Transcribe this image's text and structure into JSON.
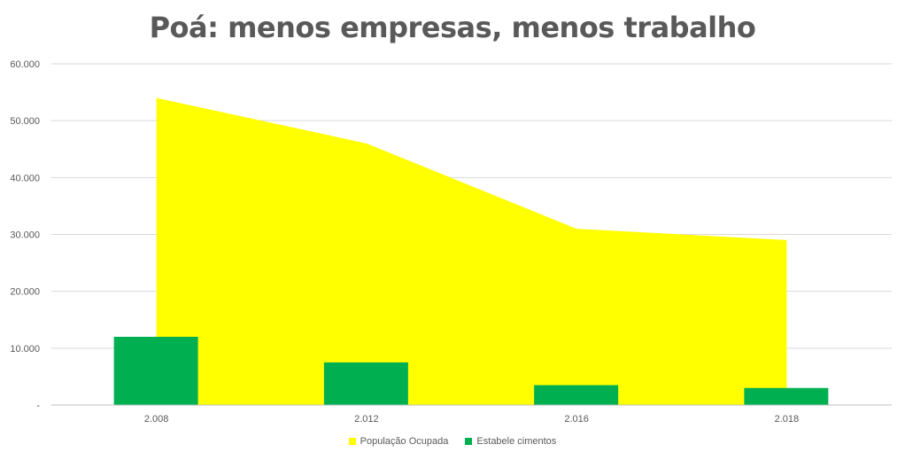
{
  "chart_data": {
    "type": "area+bar",
    "title": "Poá: menos empresas, menos trabalho",
    "categories": [
      "2.008",
      "2.012",
      "2.016",
      "2.018"
    ],
    "series": [
      {
        "name": "População Ocupada",
        "type": "area",
        "color": "#FFFF00",
        "values": [
          54000,
          46000,
          31000,
          29000
        ]
      },
      {
        "name": "Estabele cimentos",
        "type": "bar",
        "color": "#00B050",
        "values": [
          12000,
          7500,
          3500,
          3000
        ]
      }
    ],
    "ylim": [
      0,
      60000
    ],
    "yticks": [
      0,
      10000,
      20000,
      30000,
      40000,
      50000,
      60000
    ],
    "ytick_labels": [
      "-",
      "10.000",
      "20.000",
      "30.000",
      "40.000",
      "50.000",
      "60.000"
    ],
    "grid": true,
    "legend_position": "bottom"
  }
}
